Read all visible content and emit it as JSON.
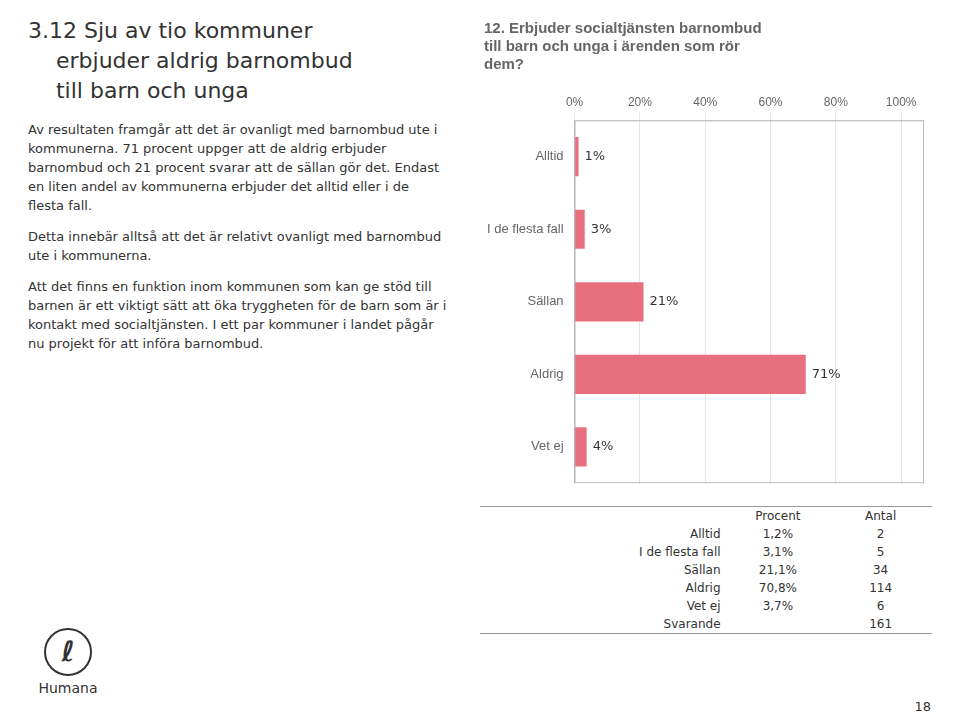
{
  "chart_data": {
    "type": "bar",
    "orientation": "horizontal",
    "title": [
      "12. Erbjuder socialtjänsten barnombud",
      "till barn och unga i ärenden som rör",
      "dem?"
    ],
    "categories": [
      "Alltid",
      "I de flesta fall",
      "Sällan",
      "Aldrig",
      "Vet ej"
    ],
    "values": [
      1.2,
      3.1,
      21.1,
      70.8,
      3.7
    ],
    "value_labels": [
      "1%",
      "3%",
      "21%",
      "71%",
      "4%"
    ],
    "data_labels": true,
    "color": "#e8707e",
    "xlim": [
      0,
      107
    ],
    "xticks": [
      {
        "value": 0,
        "label": "0%"
      },
      {
        "value": 20,
        "label": "20%"
      },
      {
        "value": 40,
        "label": "40%"
      },
      {
        "value": 60,
        "label": "60%"
      },
      {
        "value": 80,
        "label": "80%"
      },
      {
        "value": 100,
        "label": "100%"
      }
    ],
    "grid": true,
    "annotations": {
      "heading": [
        "3.12 Sju av tio kommuner",
        "    erbjuder aldrig barnombud",
        "    till barn och unga"
      ],
      "paragraphs": [
        "Av resultaten framgår att det är ovanligt med barnombud ute i kommunerna. 71 procent uppger att de aldrig erbjuder barnombud och 21 procent svarar att de sällan gör det. Endast en liten andel av kommunerna erbjuder det alltid eller i de flesta fall.",
        "Detta innebär alltså att det är relativt ovanligt med barnombud ute i kommunerna.",
        "Att det finns en funktion inom kommunen som kan ge stöd till barnen är ett viktigt sätt att öka tryggheten för de barn som är i kontakt med socialtjänsten. I ett par kommuner i landet pågår nu projekt för att införa barnombud."
      ],
      "logo": [
        "ℓ",
        "Humana"
      ],
      "table": {
        "header": [
          "Procent",
          "Antal"
        ],
        "rows": [
          [
            "Alltid",
            "1,2%",
            "2"
          ],
          [
            "I de flesta fall",
            "3,1%",
            "5"
          ],
          [
            "Sällan",
            "21,1%",
            "34"
          ],
          [
            "Aldrig",
            "70,8%",
            "114"
          ],
          [
            "Vet ej",
            "3,7%",
            "6"
          ],
          [
            "Svarande",
            null,
            "161"
          ]
        ]
      },
      "page_number": "18"
    }
  }
}
